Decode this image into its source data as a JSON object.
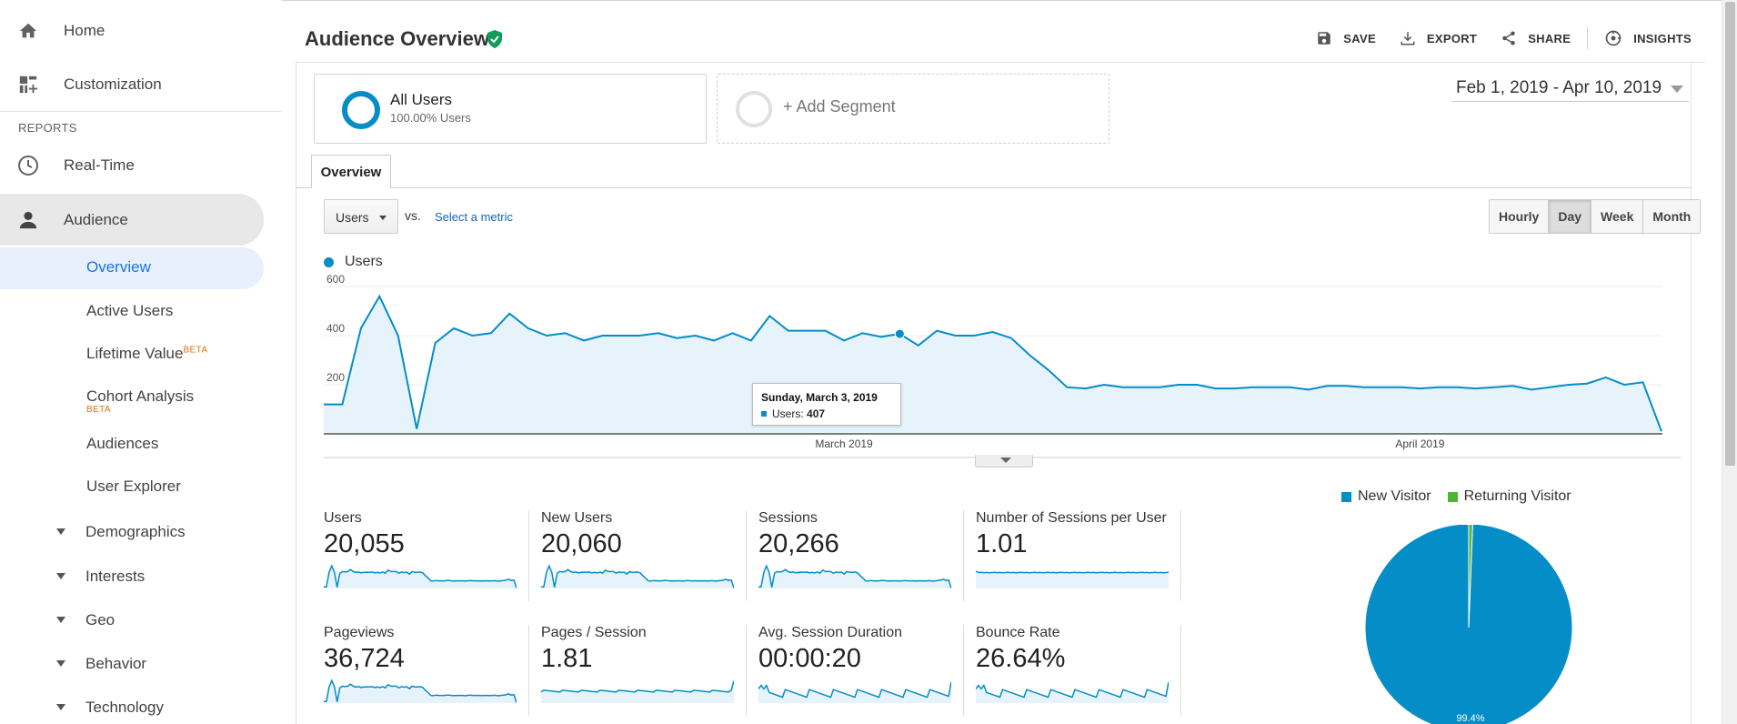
{
  "colors": {
    "accent": "#058dc7",
    "returning": "#50b432",
    "nav_active": "#1a73e8",
    "beta": "#e8710a"
  },
  "sidebar": {
    "top_items": [
      {
        "label": "Home",
        "icon": "home-icon"
      },
      {
        "label": "Customization",
        "icon": "dashboard-icon"
      }
    ],
    "reports_heading": "REPORTS",
    "realtime": {
      "label": "Real-Time",
      "icon": "clock-icon"
    },
    "audience": {
      "label": "Audience",
      "icon": "person-icon"
    },
    "sub_items": {
      "overview": "Overview",
      "active_users": "Active Users",
      "lifetime_value": "Lifetime Value",
      "lifetime_value_badge": "BETA",
      "cohort": "Cohort Analysis",
      "cohort_badge": "BETA",
      "audiences": "Audiences",
      "user_explorer": "User Explorer"
    },
    "groups": [
      "Demographics",
      "Interests",
      "Geo",
      "Behavior",
      "Technology"
    ]
  },
  "header": {
    "title": "Audience Overview",
    "actions": {
      "save": "SAVE",
      "export": "EXPORT",
      "share": "SHARE",
      "insights": "INSIGHTS"
    }
  },
  "segments": {
    "all_users": {
      "title": "All Users",
      "subtitle": "100.00% Users"
    },
    "add_segment": "+ Add Segment"
  },
  "date_range": "Feb 1, 2019 - Apr 10, 2019",
  "tabs": {
    "overview": "Overview"
  },
  "controls": {
    "metric_select": "Users",
    "vs": "vs.",
    "select_metric": "Select a metric",
    "granularity": [
      "Hourly",
      "Day",
      "Week",
      "Month"
    ],
    "granularity_selected": "Day"
  },
  "tooltip": {
    "date": "Sunday, March 3, 2019",
    "label": "Users:",
    "value": "407"
  },
  "chart_data": {
    "type": "area",
    "series": [
      {
        "name": "Users"
      }
    ],
    "yticks": [
      "600",
      "400",
      "200"
    ],
    "ylim": [
      0,
      600
    ],
    "x_labels": [
      "March 2019",
      "April 2019"
    ],
    "x_start": "2019-02-01",
    "x_end": "2019-04-10",
    "values": [
      120,
      120,
      430,
      560,
      400,
      20,
      370,
      430,
      400,
      410,
      490,
      430,
      400,
      410,
      380,
      400,
      400,
      400,
      410,
      390,
      400,
      380,
      410,
      380,
      480,
      420,
      420,
      420,
      380,
      410,
      395,
      407,
      360,
      420,
      400,
      400,
      415,
      390,
      320,
      260,
      190,
      185,
      200,
      190,
      190,
      190,
      200,
      200,
      185,
      185,
      190,
      190,
      190,
      180,
      195,
      195,
      190,
      190,
      190,
      185,
      190,
      190,
      185,
      190,
      195,
      180,
      190,
      200,
      205,
      230,
      200,
      210,
      10
    ]
  },
  "metrics": [
    {
      "label": "Users",
      "value": "20,055",
      "spark": "users"
    },
    {
      "label": "New Users",
      "value": "20,060",
      "spark": "users"
    },
    {
      "label": "Sessions",
      "value": "20,266",
      "spark": "users"
    },
    {
      "label": "Number of Sessions per User",
      "value": "1.01",
      "spark": "flat"
    },
    {
      "label": "Pageviews",
      "value": "36,724",
      "spark": "users"
    },
    {
      "label": "Pages / Session",
      "value": "1.81",
      "spark": "flatup"
    },
    {
      "label": "Avg. Session Duration",
      "value": "00:00:20",
      "spark": "noisy"
    },
    {
      "label": "Bounce Rate",
      "value": "26.64%",
      "spark": "noisy"
    }
  ],
  "pie": {
    "legend": [
      {
        "label": "New Visitor"
      },
      {
        "label": "Returning Visitor"
      }
    ],
    "new_pct": 99.4,
    "returning_pct": 0.6,
    "label": "99.4%"
  }
}
